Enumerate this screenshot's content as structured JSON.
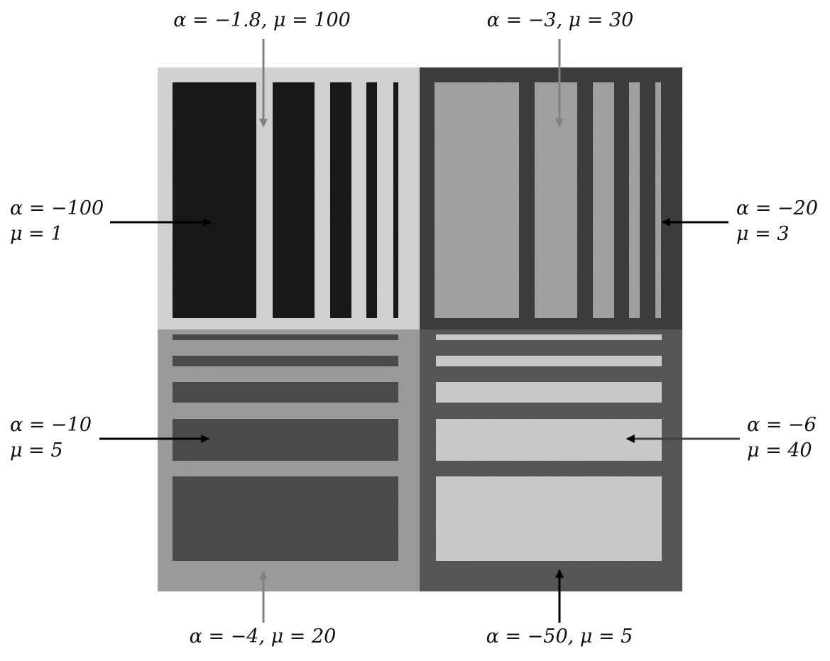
{
  "labels": {
    "top_left": {
      "line1": "α = −1.8,  μ = 100"
    },
    "top_right": {
      "line1": "α = −3,  μ = 30"
    },
    "left_upper": {
      "line1": "α = −100",
      "line2": "μ = 1"
    },
    "right_upper": {
      "line1": "α = −20",
      "line2": "μ = 3"
    },
    "left_lower": {
      "line1": "α = −10",
      "line2": "μ = 5"
    },
    "right_lower": {
      "line1": "α = −6",
      "line2": "μ = 40"
    },
    "bottom_left": {
      "line1": "α = −4,  μ = 20"
    },
    "bottom_right": {
      "line1": "α = −50,  μ = 5"
    }
  },
  "colors": {
    "q1_background": "#d0d0d0",
    "q1_bars": "#141414",
    "q2_background": "#3c3c3c",
    "q2_bars": "#a0a0a0",
    "q3_background": "#9a9a9a",
    "q3_bars": "#4a4a4a",
    "q4_background": "#555555",
    "q4_bars": "#c8c8c8",
    "arrow_black": "#000000",
    "arrow_gray": "#808080"
  }
}
